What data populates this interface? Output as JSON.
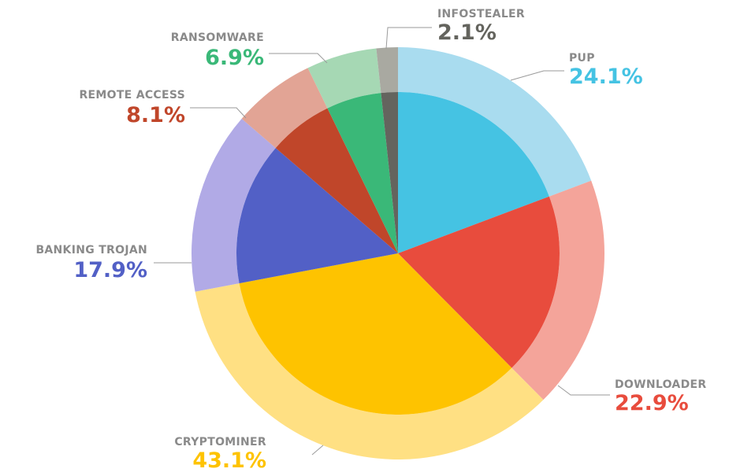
{
  "chart_data": {
    "type": "pie",
    "categories": [
      "PUP",
      "DOWNLOADER",
      "CRYPTOMINER",
      "BANKING TROJAN",
      "REMOTE ACCESS",
      "RANSOMWARE",
      "INFOSTEALER"
    ],
    "values": [
      24.1,
      22.9,
      43.1,
      17.9,
      8.1,
      6.9,
      2.1
    ],
    "value_labels": [
      "24.1%",
      "22.9%",
      "43.1%",
      "17.9%",
      "8.1%",
      "6.9%",
      "2.1%"
    ],
    "colors": [
      "#45c3e3",
      "#e84c3d",
      "#fec300",
      "#5260c6",
      "#c0462a",
      "#3ab878",
      "#64645e"
    ],
    "ring_colors": [
      "#a9dcef",
      "#f4a49a",
      "#ffe083",
      "#b1aae6",
      "#e2a495",
      "#a6d8b4",
      "#a9a9a1"
    ]
  }
}
